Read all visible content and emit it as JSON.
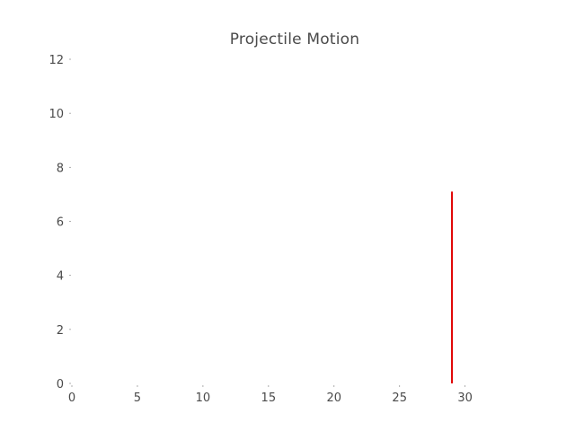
{
  "chart_data": {
    "type": "line",
    "title": "Projectile Motion",
    "xlabel": "",
    "ylabel": "",
    "xlim": [
      0,
      34
    ],
    "ylim": [
      0,
      12
    ],
    "x_ticks": [
      0,
      5,
      10,
      15,
      20,
      25,
      30
    ],
    "y_ticks": [
      0,
      2,
      4,
      6,
      8,
      10,
      12
    ],
    "grid": false,
    "legend": "none",
    "series": [
      {
        "color": "#e00000",
        "x": [
          29.0,
          29.0
        ],
        "y": [
          0,
          7.1
        ]
      }
    ]
  }
}
